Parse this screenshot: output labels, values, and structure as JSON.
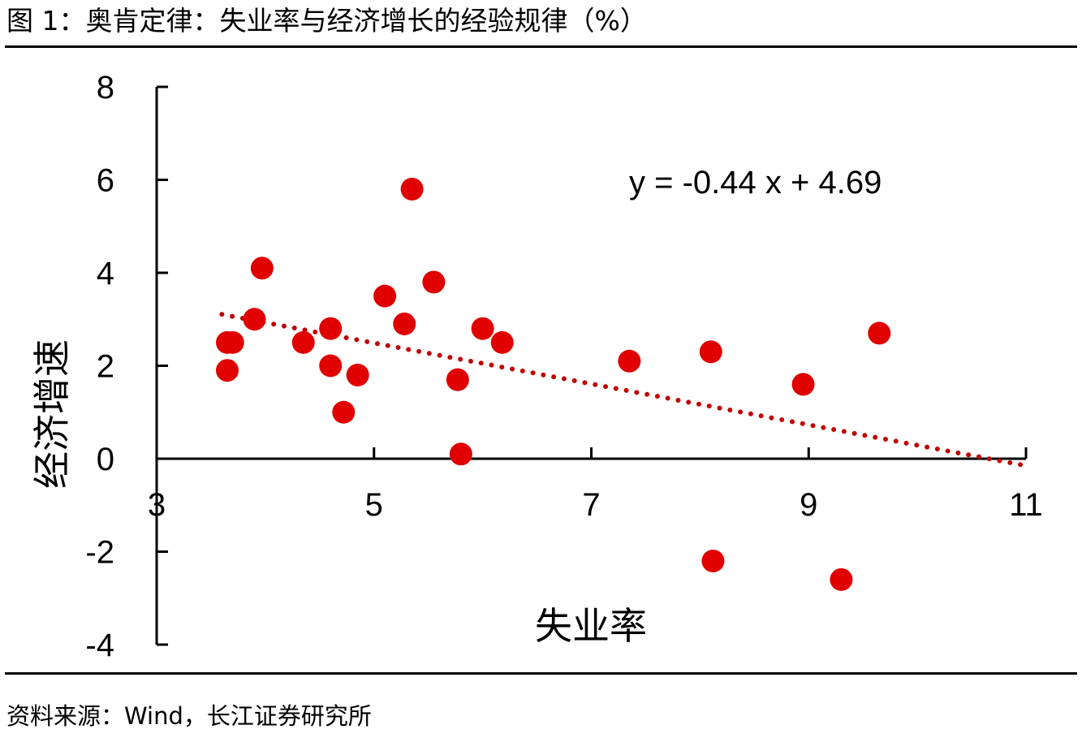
{
  "figure": {
    "title": "图 1：奥肯定律：失业率与经济增长的经验规律（%）",
    "source": "资料来源：Wind，长江证券研究所"
  },
  "colors": {
    "point": "#E00000",
    "trendline": "#C00000",
    "axis": "#000000"
  },
  "chart_data": {
    "type": "scatter",
    "xlabel": "失业率",
    "ylabel": "经济增速",
    "xlim": [
      3,
      11
    ],
    "ylim": [
      -4,
      8
    ],
    "xticks": [
      3,
      5,
      7,
      9,
      11
    ],
    "yticks": [
      -4,
      -2,
      0,
      2,
      4,
      6,
      8
    ],
    "points": [
      {
        "x": 3.65,
        "y": 2.5
      },
      {
        "x": 3.7,
        "y": 2.5
      },
      {
        "x": 3.65,
        "y": 1.9
      },
      {
        "x": 3.9,
        "y": 3.0
      },
      {
        "x": 3.97,
        "y": 4.1
      },
      {
        "x": 4.35,
        "y": 2.5
      },
      {
        "x": 4.6,
        "y": 2.8
      },
      {
        "x": 4.6,
        "y": 2.0
      },
      {
        "x": 4.72,
        "y": 1.0
      },
      {
        "x": 4.85,
        "y": 1.8
      },
      {
        "x": 5.1,
        "y": 3.5
      },
      {
        "x": 5.28,
        "y": 2.9
      },
      {
        "x": 5.35,
        "y": 5.8
      },
      {
        "x": 5.55,
        "y": 3.8
      },
      {
        "x": 5.77,
        "y": 1.7
      },
      {
        "x": 5.8,
        "y": 0.1
      },
      {
        "x": 6.0,
        "y": 2.8
      },
      {
        "x": 6.18,
        "y": 2.5
      },
      {
        "x": 7.35,
        "y": 2.1
      },
      {
        "x": 8.1,
        "y": 2.3
      },
      {
        "x": 8.12,
        "y": -2.2
      },
      {
        "x": 8.95,
        "y": 1.6
      },
      {
        "x": 9.3,
        "y": -2.6
      },
      {
        "x": 9.65,
        "y": 2.7
      }
    ],
    "trendline": {
      "equation": "y = -0.44 x + 4.69",
      "slope": -0.44,
      "intercept": 4.69,
      "x_range": [
        3.6,
        11
      ]
    },
    "grid": false,
    "legend": "none"
  }
}
